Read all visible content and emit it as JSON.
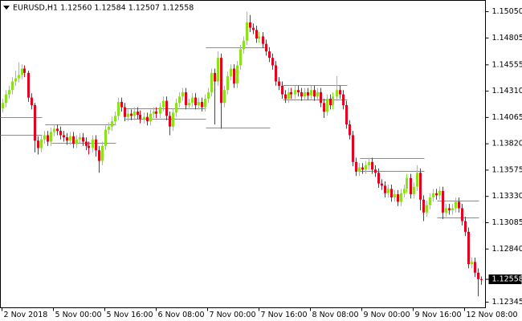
{
  "chart_data": {
    "type": "candlestick",
    "title": "EURUSD,H1  1.12560 1.12584 1.12507 1.12558",
    "bull_color": "#88e31a",
    "bear_color": "#e8001c",
    "level_color": "#8c8c8c",
    "ylim": [
      1.12293,
      1.15155
    ],
    "xlim": [
      -0.5,
      150.5
    ],
    "yticks": [
      {
        "value": 1.1505,
        "label": "1.15050"
      },
      {
        "value": 1.14805,
        "label": "1.14805"
      },
      {
        "value": 1.14555,
        "label": "1.14555"
      },
      {
        "value": 1.1431,
        "label": "1.14310"
      },
      {
        "value": 1.14065,
        "label": "1.14065"
      },
      {
        "value": 1.1382,
        "label": "1.13820"
      },
      {
        "value": 1.13575,
        "label": "1.13575"
      },
      {
        "value": 1.1333,
        "label": "1.13330"
      },
      {
        "value": 1.13085,
        "label": "1.13085"
      },
      {
        "value": 1.1284,
        "label": "1.12840"
      },
      {
        "value": 1.12345,
        "label": "1.12345"
      }
    ],
    "xticks": [
      {
        "value": 0,
        "label": "2 Nov 2018"
      },
      {
        "value": 16,
        "label": "5 Nov 00:00"
      },
      {
        "value": 32,
        "label": "5 Nov 16:00"
      },
      {
        "value": 48,
        "label": "6 Nov 08:00"
      },
      {
        "value": 64,
        "label": "7 Nov 00:00"
      },
      {
        "value": 80,
        "label": "7 Nov 16:00"
      },
      {
        "value": 96,
        "label": "8 Nov 08:00"
      },
      {
        "value": 112,
        "label": "9 Nov 00:00"
      },
      {
        "value": 128,
        "label": "9 Nov 16:00"
      },
      {
        "value": 144,
        "label": "12 Nov 08:00"
      }
    ],
    "last_price": {
      "value": 1.12558,
      "label": "1.12558"
    },
    "open": [
      1.1415,
      1.142,
      1.1428,
      1.1432,
      1.144,
      1.1443,
      1.1446,
      1.1452,
      1.1448,
      1.1425,
      1.1418,
      1.1385,
      1.1378,
      1.1386,
      1.139,
      1.1384,
      1.1393,
      1.1396,
      1.1394,
      1.139,
      1.1388,
      1.1385,
      1.1389,
      1.1382,
      1.1386,
      1.1388,
      1.1384,
      1.138,
      1.1378,
      1.1386,
      1.1376,
      1.1366,
      1.138,
      1.1395,
      1.1398,
      1.1403,
      1.1408,
      1.1421,
      1.1416,
      1.1407,
      1.141,
      1.1408,
      1.1412,
      1.1409,
      1.1405,
      1.1407,
      1.1403,
      1.141,
      1.1412,
      1.141,
      1.1416,
      1.1422,
      1.1408,
      1.1398,
      1.1411,
      1.142,
      1.1426,
      1.143,
      1.1418,
      1.142,
      1.1425,
      1.1418,
      1.1421,
      1.1416,
      1.1424,
      1.143,
      1.1448,
      1.144,
      1.1462,
      1.142,
      1.1432,
      1.1445,
      1.1452,
      1.1438,
      1.1455,
      1.147,
      1.1478,
      1.1495,
      1.149,
      1.1488,
      1.148,
      1.1482,
      1.1475,
      1.1468,
      1.1462,
      1.1455,
      1.144,
      1.1436,
      1.1428,
      1.1424,
      1.143,
      1.1428,
      1.1432,
      1.143,
      1.1426,
      1.143,
      1.1427,
      1.1432,
      1.1426,
      1.143,
      1.142,
      1.1412,
      1.1424,
      1.1418,
      1.1426,
      1.1432,
      1.1428,
      1.1418,
      1.14,
      1.139,
      1.1365,
      1.1356,
      1.136,
      1.1358,
      1.1362,
      1.1365,
      1.1358,
      1.1355,
      1.1345,
      1.1343,
      1.1336,
      1.134,
      1.1332,
      1.1335,
      1.1328,
      1.1336,
      1.134,
      1.135,
      1.1335,
      1.1342,
      1.1355,
      1.133,
      1.1318,
      1.1325,
      1.1332,
      1.1336,
      1.1334,
      1.1338,
      1.1318,
      1.1322,
      1.132,
      1.1322,
      1.1328,
      1.1322,
      1.131,
      1.13,
      1.127,
      1.1272,
      1.1262,
      1.1256
    ],
    "high": [
      1.1424,
      1.1432,
      1.1436,
      1.1444,
      1.145,
      1.1458,
      1.1456,
      1.1455,
      1.145,
      1.1429,
      1.142,
      1.1389,
      1.139,
      1.1394,
      1.1394,
      1.1397,
      1.14,
      1.14,
      1.1398,
      1.1394,
      1.1392,
      1.1393,
      1.1393,
      1.139,
      1.1392,
      1.1392,
      1.1388,
      1.1384,
      1.139,
      1.139,
      1.138,
      1.1384,
      1.1399,
      1.1402,
      1.1407,
      1.1412,
      1.1425,
      1.1425,
      1.142,
      1.1414,
      1.1414,
      1.1416,
      1.1416,
      1.1413,
      1.1411,
      1.1411,
      1.1414,
      1.1416,
      1.1416,
      1.142,
      1.1426,
      1.1426,
      1.1412,
      1.1415,
      1.1424,
      1.143,
      1.1434,
      1.1434,
      1.1424,
      1.1429,
      1.1429,
      1.1425,
      1.1425,
      1.1428,
      1.1434,
      1.1452,
      1.1452,
      1.1468,
      1.1466,
      1.1436,
      1.1449,
      1.1456,
      1.1456,
      1.1459,
      1.1474,
      1.1482,
      1.1505,
      1.1502,
      1.1494,
      1.1492,
      1.1486,
      1.1486,
      1.1479,
      1.1472,
      1.1466,
      1.1459,
      1.1444,
      1.144,
      1.1432,
      1.1434,
      1.1434,
      1.1436,
      1.1436,
      1.1434,
      1.1434,
      1.1434,
      1.1436,
      1.1436,
      1.1434,
      1.1434,
      1.1424,
      1.1428,
      1.1428,
      1.143,
      1.1445,
      1.1436,
      1.1432,
      1.1422,
      1.1404,
      1.1394,
      1.1369,
      1.1364,
      1.1364,
      1.1366,
      1.1369,
      1.1369,
      1.1362,
      1.1359,
      1.1349,
      1.1347,
      1.1344,
      1.1344,
      1.1339,
      1.1339,
      1.134,
      1.1344,
      1.1354,
      1.1354,
      1.1346,
      1.1362,
      1.1359,
      1.1334,
      1.1329,
      1.1336,
      1.134,
      1.134,
      1.1342,
      1.1342,
      1.1326,
      1.1326,
      1.1326,
      1.1332,
      1.1332,
      1.1326,
      1.1314,
      1.1304,
      1.1276,
      1.1276,
      1.1266,
      1.12584
    ],
    "low": [
      1.1411,
      1.1416,
      1.1424,
      1.1428,
      1.1436,
      1.1439,
      1.1442,
      1.1444,
      1.1421,
      1.1414,
      1.1374,
      1.1372,
      1.1374,
      1.1382,
      1.138,
      1.138,
      1.1389,
      1.139,
      1.1386,
      1.1384,
      1.1381,
      1.1381,
      1.1378,
      1.1378,
      1.1382,
      1.138,
      1.1376,
      1.1372,
      1.1374,
      1.137,
      1.1355,
      1.1362,
      1.1376,
      1.1391,
      1.1394,
      1.1399,
      1.1404,
      1.1412,
      1.1403,
      1.1403,
      1.1404,
      1.1404,
      1.1405,
      1.1401,
      1.1401,
      1.1399,
      1.1399,
      1.1406,
      1.1406,
      1.1406,
      1.1412,
      1.1404,
      1.139,
      1.1394,
      1.1407,
      1.1416,
      1.1422,
      1.1414,
      1.1414,
      1.1416,
      1.1414,
      1.1414,
      1.1412,
      1.1412,
      1.142,
      1.1426,
      1.14,
      1.1436,
      1.1396,
      1.1416,
      1.1428,
      1.1441,
      1.1434,
      1.1434,
      1.1451,
      1.1466,
      1.1474,
      1.1486,
      1.1484,
      1.1476,
      1.1476,
      1.1471,
      1.1464,
      1.1458,
      1.1451,
      1.1436,
      1.1432,
      1.1424,
      1.142,
      1.142,
      1.1424,
      1.1424,
      1.1426,
      1.1422,
      1.1422,
      1.1423,
      1.1423,
      1.1422,
      1.1422,
      1.1416,
      1.1406,
      1.1408,
      1.1414,
      1.1414,
      1.1422,
      1.1424,
      1.1414,
      1.1396,
      1.1386,
      1.1361,
      1.1352,
      1.1352,
      1.1354,
      1.1354,
      1.1358,
      1.1354,
      1.1351,
      1.1341,
      1.1339,
      1.1332,
      1.1332,
      1.1328,
      1.1328,
      1.1324,
      1.1324,
      1.1332,
      1.1336,
      1.1331,
      1.1331,
      1.1338,
      1.132,
      1.131,
      1.1314,
      1.1321,
      1.1328,
      1.133,
      1.133,
      1.1312,
      1.1314,
      1.1316,
      1.1316,
      1.1318,
      1.1318,
      1.1306,
      1.1296,
      1.1266,
      1.1266,
      1.1258,
      1.124,
      1.12507
    ],
    "close": [
      1.142,
      1.1428,
      1.1432,
      1.144,
      1.1443,
      1.1446,
      1.1452,
      1.1448,
      1.1425,
      1.1418,
      1.1385,
      1.1378,
      1.1386,
      1.139,
      1.1384,
      1.1393,
      1.1396,
      1.1394,
      1.139,
      1.1388,
      1.1385,
      1.1389,
      1.1382,
      1.1386,
      1.1388,
      1.1384,
      1.138,
      1.1378,
      1.1386,
      1.1376,
      1.1366,
      1.138,
      1.1395,
      1.1398,
      1.1403,
      1.1408,
      1.1421,
      1.1416,
      1.1407,
      1.141,
      1.1408,
      1.1412,
      1.1409,
      1.1405,
      1.1407,
      1.1403,
      1.141,
      1.1412,
      1.141,
      1.1416,
      1.1422,
      1.1408,
      1.1398,
      1.1411,
      1.142,
      1.1426,
      1.143,
      1.1418,
      1.142,
      1.1425,
      1.1418,
      1.1421,
      1.1416,
      1.1424,
      1.143,
      1.1448,
      1.144,
      1.1462,
      1.142,
      1.1432,
      1.1445,
      1.1452,
      1.1438,
      1.1455,
      1.147,
      1.1478,
      1.1495,
      1.149,
      1.1488,
      1.148,
      1.1482,
      1.1475,
      1.1468,
      1.1462,
      1.1455,
      1.144,
      1.1436,
      1.1428,
      1.1424,
      1.143,
      1.1428,
      1.1432,
      1.143,
      1.1426,
      1.143,
      1.1427,
      1.1432,
      1.1426,
      1.143,
      1.142,
      1.1412,
      1.1424,
      1.1418,
      1.1426,
      1.1432,
      1.1428,
      1.1418,
      1.14,
      1.139,
      1.1365,
      1.1356,
      1.136,
      1.1358,
      1.1362,
      1.1365,
      1.1358,
      1.1355,
      1.1345,
      1.1343,
      1.1336,
      1.134,
      1.1332,
      1.1335,
      1.1328,
      1.1336,
      1.134,
      1.135,
      1.1335,
      1.1342,
      1.1355,
      1.133,
      1.1318,
      1.1325,
      1.1332,
      1.1336,
      1.1334,
      1.1338,
      1.1318,
      1.1322,
      1.132,
      1.1322,
      1.1328,
      1.1322,
      1.131,
      1.13,
      1.127,
      1.1272,
      1.1262,
      1.1256,
      1.12558
    ],
    "levels": [
      {
        "price": 1.1407,
        "start": 0,
        "end": 12
      },
      {
        "price": 1.139,
        "start": 0,
        "end": 12
      },
      {
        "price": 1.14,
        "start": 14,
        "end": 35
      },
      {
        "price": 1.1383,
        "start": 16,
        "end": 35
      },
      {
        "price": 1.1415,
        "start": 39,
        "end": 63
      },
      {
        "price": 1.1405,
        "start": 39,
        "end": 63
      },
      {
        "price": 1.1472,
        "start": 64,
        "end": 82
      },
      {
        "price": 1.1397,
        "start": 64,
        "end": 83
      },
      {
        "price": 1.1437,
        "start": 88,
        "end": 107
      },
      {
        "price": 1.1423,
        "start": 88,
        "end": 107
      },
      {
        "price": 1.1369,
        "start": 112,
        "end": 131
      },
      {
        "price": 1.1357,
        "start": 112,
        "end": 131
      },
      {
        "price": 1.1329,
        "start": 136,
        "end": 148
      },
      {
        "price": 1.1313,
        "start": 136,
        "end": 148
      }
    ]
  }
}
